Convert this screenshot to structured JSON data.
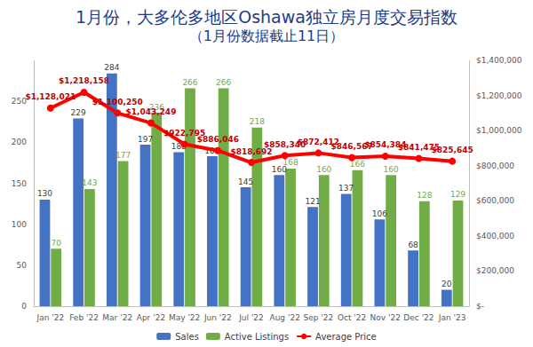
{
  "chart_data": {
    "type": "bar",
    "title": "1月份，大多伦多地区Oshawa独立房月度交易指数",
    "subtitle": "（1月份数据截止11日）",
    "categories": [
      "Jan '22",
      "Feb '22",
      "Mar '22",
      "Apr '22",
      "May '22",
      "Jun '22",
      "Jul '22",
      "Aug '22",
      "Sep '22",
      "Oct '22",
      "Nov '22",
      "Dec '22",
      "Jan '23"
    ],
    "series": [
      {
        "name": "Sales",
        "type": "bar",
        "color": "#4472C4",
        "values": [
          130,
          229,
          284,
          197,
          188,
          183,
          145,
          160,
          121,
          137,
          106,
          68,
          20
        ]
      },
      {
        "name": "Active Listings",
        "type": "bar",
        "color": "#70AD47",
        "values": [
          70,
          143,
          177,
          236,
          266,
          266,
          218,
          168,
          160,
          166,
          160,
          128,
          129
        ]
      },
      {
        "name": "Average Price",
        "type": "line",
        "axis": "y2",
        "color": "#FF0000",
        "marker": "circle",
        "values": [
          1128021,
          1218158,
          1100250,
          1043249,
          922795,
          886046,
          818692,
          858340,
          872412,
          846567,
          854384,
          841475,
          825645
        ],
        "value_labels": [
          "$1,128,021",
          "$1,218,158",
          "$1,100,250",
          "$1,043,249",
          "$922,795",
          "$886,046",
          "$818,692",
          "$858,340",
          "$872,412",
          "$846,567",
          "$854,384",
          "$841,475",
          "$825,645"
        ]
      }
    ],
    "ylim": [
      0,
      300
    ],
    "yticks": [
      0,
      50,
      100,
      150,
      200,
      250
    ],
    "y2lim": [
      0,
      1400000
    ],
    "y2ticks": [
      {
        "value": 0,
        "label": "$-"
      },
      {
        "value": 200000,
        "label": "$200,000"
      },
      {
        "value": 400000,
        "label": "$400,000"
      },
      {
        "value": 600000,
        "label": "$600,000"
      },
      {
        "value": 800000,
        "label": "$800,000"
      },
      {
        "value": 1000000,
        "label": "$1,000,000"
      },
      {
        "value": 1200000,
        "label": "$1,200,000"
      },
      {
        "value": 1400000,
        "label": "$1,400,000"
      }
    ],
    "legend": "bottom",
    "data_labels": true,
    "grid": false
  }
}
